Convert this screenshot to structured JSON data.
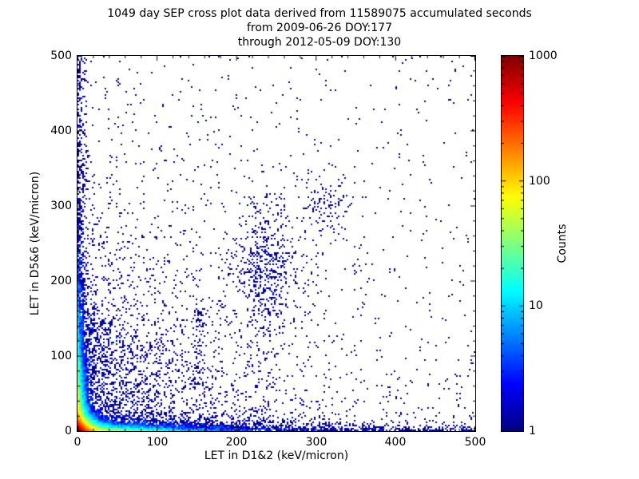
{
  "chart_data": {
    "type": "heatmap",
    "title": "1049 day SEP cross plot data derived from 11589075 accumulated seconds",
    "subtitle_line1": "from 2009-06-26 DOY:177",
    "subtitle_line2": "through 2012-05-09 DOY:130",
    "xlabel": "LET in D1&2 (keV/micron)",
    "ylabel": "LET in D5&6 (keV/micron)",
    "xlim": [
      0,
      500
    ],
    "ylim": [
      0,
      500
    ],
    "xticks": [
      "0",
      "100",
      "200",
      "300",
      "400",
      "500"
    ],
    "yticks": [
      "0",
      "100",
      "200",
      "300",
      "400",
      "500"
    ],
    "minor_tick_step": 20,
    "grid": false,
    "background_color": "#ffffff",
    "point_color_min": "#00008f",
    "colorbar": {
      "label": "Counts",
      "scale": "log",
      "range": [
        1,
        1000
      ],
      "ticks": [
        "1",
        "10",
        "100",
        "1000"
      ],
      "colormap": "jet",
      "position": "right"
    },
    "bin_size_px": 2,
    "seed": 42,
    "density_model": {
      "description": "2D histogram of coincidence LET events; hot core (counts ~1000, jet red) at origin decaying exponentially, dense bands hugging both axes, fan of streaks from origin up to ~(150,150), sparse single-count (dark blue) scatter across plot, loose clump near (237,218) and (315,300), sparse dots to (500,500).",
      "analytic_core": [
        {
          "amp": 1200,
          "sx": 7,
          "sy": 7
        },
        {
          "amp": 120,
          "sx": 3.5,
          "sy": 45
        },
        {
          "amp": 90,
          "sx": 45,
          "sy": 3.5
        }
      ],
      "point_clusters": [
        {
          "name": "bottom-band",
          "n": 3000,
          "x": {
            "dist": "exp",
            "mean": 100,
            "max": 500
          },
          "y": {
            "dist": "exp",
            "mean": 6
          }
        },
        {
          "name": "bottom-band-far",
          "n": 500,
          "x": {
            "dist": "uniform",
            "min": 0,
            "max": 500
          },
          "y": {
            "dist": "exp",
            "mean": 4
          }
        },
        {
          "name": "left-column",
          "n": 2600,
          "x": {
            "dist": "exp",
            "mean": 5
          },
          "y": {
            "dist": "exp",
            "mean": 80,
            "max": 500
          }
        },
        {
          "name": "left-column-tall",
          "n": 400,
          "x": {
            "dist": "exp",
            "mean": 4
          },
          "y": {
            "dist": "uniform",
            "min": 0,
            "max": 500
          }
        },
        {
          "name": "lower-left-cloud",
          "n": 2200,
          "x": {
            "dist": "exp",
            "mean": 130,
            "max": 500
          },
          "y": {
            "dist": "exp",
            "mean": 120,
            "max": 500
          }
        },
        {
          "name": "uniform-sprinkle",
          "n": 550,
          "x": {
            "dist": "uniform",
            "min": 0,
            "max": 500
          },
          "y": {
            "dist": "uniform",
            "min": 0,
            "max": 500
          }
        },
        {
          "name": "mid-clump",
          "n": 380,
          "x": {
            "dist": "normal",
            "mean": 237,
            "sd": 26
          },
          "y": {
            "dist": "normal",
            "mean": 218,
            "sd": 34
          }
        },
        {
          "name": "upper-mid-clump",
          "n": 110,
          "x": {
            "dist": "normal",
            "mean": 315,
            "sd": 18
          },
          "y": {
            "dist": "normal",
            "mean": 300,
            "sd": 20
          }
        },
        {
          "name": "mid-vertical-band",
          "n": 220,
          "x": {
            "dist": "normal",
            "mean": 238,
            "sd": 14
          },
          "y": {
            "dist": "uniform",
            "min": 0,
            "max": 320
          }
        },
        {
          "name": "x150-clump",
          "n": 70,
          "x": {
            "dist": "normal",
            "mean": 152,
            "sd": 4
          },
          "y": {
            "dist": "uniform",
            "min": 60,
            "max": 165
          }
        }
      ],
      "streaks": [
        {
          "x1": 22,
          "y1": 165,
          "n": 90,
          "jitter": 1.8,
          "power": 0.75
        },
        {
          "x1": 32,
          "y1": 150,
          "n": 80,
          "jitter": 1.8,
          "power": 0.75
        },
        {
          "x1": 44,
          "y1": 150,
          "n": 70,
          "jitter": 2.0,
          "power": 0.75
        },
        {
          "x1": 58,
          "y1": 140,
          "n": 60,
          "jitter": 2.0,
          "power": 0.75
        },
        {
          "x1": 75,
          "y1": 130,
          "n": 55,
          "jitter": 2.2,
          "power": 0.75
        },
        {
          "x1": 95,
          "y1": 115,
          "n": 50,
          "jitter": 2.5,
          "power": 0.75
        },
        {
          "x1": 120,
          "y1": 95,
          "n": 45,
          "jitter": 2.5,
          "power": 0.75
        },
        {
          "x1": 150,
          "y1": 70,
          "n": 40,
          "jitter": 3.0,
          "power": 0.75
        }
      ]
    }
  }
}
